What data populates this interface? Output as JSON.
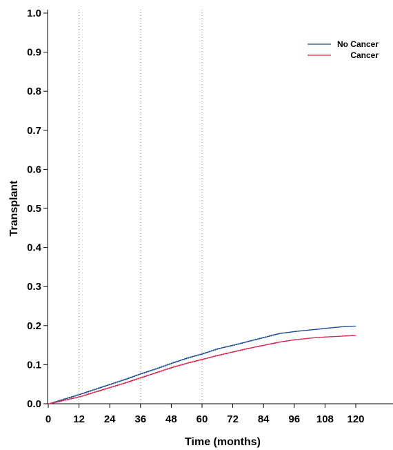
{
  "chart_data": {
    "type": "line",
    "title": "",
    "xlabel": "Time (months)",
    "ylabel": "Transplant",
    "xlim": [
      0,
      120
    ],
    "ylim": [
      0,
      1.0
    ],
    "x_ticks": [
      0,
      12,
      24,
      36,
      48,
      60,
      72,
      84,
      96,
      108,
      120
    ],
    "x_tick_labels": [
      "0",
      "12",
      "24",
      "36",
      "48",
      "60",
      "72",
      "84",
      "96",
      "108",
      "120"
    ],
    "y_ticks": [
      0,
      0.1,
      0.2,
      0.3,
      0.4,
      0.5,
      0.6,
      0.7,
      0.8,
      0.9,
      1.0
    ],
    "y_tick_labels": [
      "0.0",
      "0.1",
      "0.2",
      "0.3",
      "0.4",
      "0.5",
      "0.6",
      "0.7",
      "0.8",
      "0.9",
      "1.0"
    ],
    "reference_lines_x": [
      12,
      36,
      60
    ],
    "grid": false,
    "legend_position": "top-right",
    "series": [
      {
        "name": "No Cancer",
        "color": "#1f4e96",
        "x": [
          0,
          6,
          12,
          18,
          24,
          30,
          36,
          42,
          48,
          54,
          60,
          66,
          72,
          78,
          84,
          90,
          96,
          102,
          108,
          114,
          120
        ],
        "y": [
          0,
          0.012,
          0.024,
          0.037,
          0.05,
          0.063,
          0.077,
          0.09,
          0.104,
          0.117,
          0.128,
          0.141,
          0.15,
          0.16,
          0.17,
          0.18,
          0.185,
          0.189,
          0.193,
          0.197,
          0.199
        ]
      },
      {
        "name": "Cancer",
        "color": "#d6284b",
        "x": [
          0,
          6,
          12,
          18,
          24,
          30,
          36,
          42,
          48,
          54,
          60,
          66,
          72,
          78,
          84,
          90,
          96,
          102,
          108,
          114,
          120
        ],
        "y": [
          0,
          0.009,
          0.018,
          0.03,
          0.042,
          0.054,
          0.067,
          0.08,
          0.093,
          0.104,
          0.114,
          0.124,
          0.133,
          0.142,
          0.15,
          0.158,
          0.164,
          0.168,
          0.171,
          0.173,
          0.175
        ]
      }
    ]
  }
}
